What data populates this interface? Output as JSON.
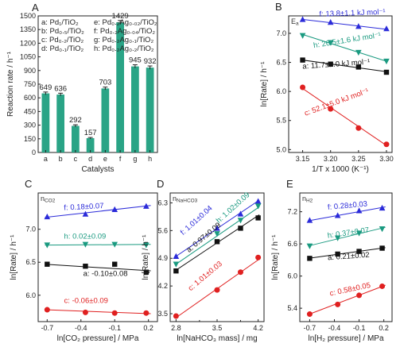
{
  "chart_data": [
    {
      "id": "A",
      "type": "bar",
      "panel_label": "A",
      "xlabel": "Catalysts",
      "ylabel": "Reaction rate / h⁻¹",
      "ylim": [
        0,
        1500
      ],
      "yticks": [
        0,
        150,
        300,
        450,
        600,
        750,
        900,
        1050,
        1200,
        1350,
        1500
      ],
      "categories": [
        "a",
        "b",
        "c",
        "d",
        "e",
        "f",
        "g",
        "h"
      ],
      "values": [
        649,
        636,
        292,
        157,
        703,
        1429,
        945,
        932
      ],
      "errors": [
        15,
        15,
        12,
        8,
        15,
        20,
        18,
        18
      ],
      "value_labels": [
        "649",
        "636",
        "292",
        "157",
        "703",
        "1429",
        "945",
        "932"
      ],
      "legend": [
        "a: Pd₁/TiO₂",
        "b: Pd₀.₅/TiO₂",
        "c: Pd₀.₂/TiO₂",
        "d: Pd₀.₁/TiO₂",
        "e: Pd₀.₂Ag₀.₀₂/TiO₂",
        "f: Pd₀.₂Ag₀.₀₄/TiO₂",
        "g: Pd₀.₂Ag₀.₁/TiO₂",
        "h: Pd₀.₂Ag₀.₂/TiO₂"
      ],
      "bar_color": "#2aa486",
      "legend_placement": "top-left"
    },
    {
      "id": "B",
      "type": "scatter",
      "panel_label": "B",
      "corner_label": "Ea",
      "xlabel": "1/T x 1000 (K⁻¹)",
      "ylabel": "ln[Rate] / h⁻¹",
      "xlim": [
        3.125,
        3.31
      ],
      "ylim": [
        4.95,
        7.3
      ],
      "xticks": [
        3.15,
        3.2,
        3.25,
        3.3
      ],
      "yticks": [
        5.0,
        5.5,
        6.0,
        6.5,
        7.0
      ],
      "series": [
        {
          "name": "f: 13.8±1.1 kJ mol⁻¹",
          "color": "#2b2bd9",
          "marker": "triangle-up",
          "x": [
            3.15,
            3.2,
            3.25,
            3.3
          ],
          "y": [
            7.24,
            7.19,
            7.12,
            7.08
          ],
          "fit": [
            [
              3.15,
              7.24
            ],
            [
              3.3,
              7.07
            ]
          ]
        },
        {
          "name": "h: 26.5±1.6 kJ mol⁻¹",
          "color": "#1a9a80",
          "marker": "triangle-down",
          "x": [
            3.15,
            3.2,
            3.25,
            3.3
          ],
          "y": [
            6.96,
            6.84,
            6.67,
            6.52
          ],
          "fit": [
            [
              3.15,
              6.98
            ],
            [
              3.3,
              6.52
            ]
          ]
        },
        {
          "name": "a: 11.7±1.0 kJ mol⁻¹",
          "color": "#111111",
          "marker": "square",
          "x": [
            3.15,
            3.2,
            3.25,
            3.3
          ],
          "y": [
            6.54,
            6.47,
            6.42,
            6.33
          ],
          "fit": [
            [
              3.15,
              6.54
            ],
            [
              3.3,
              6.34
            ]
          ]
        },
        {
          "name": "c: 52.1±5.0 kJ mol⁻¹",
          "color": "#e02020",
          "marker": "circle",
          "x": [
            3.15,
            3.2,
            3.25,
            3.3
          ],
          "y": [
            6.07,
            5.7,
            5.37,
            5.09
          ],
          "fit": [
            [
              3.15,
              6.05
            ],
            [
              3.3,
              5.07
            ]
          ]
        }
      ]
    },
    {
      "id": "C",
      "type": "scatter",
      "panel_label": "C",
      "corner_label": "nCO2",
      "xlabel": "ln[CO₂ pressure] / MPa",
      "ylabel": "ln[Rate] / h⁻¹",
      "xlim": [
        -0.78,
        0.28
      ],
      "ylim": [
        5.6,
        7.55
      ],
      "xticks": [
        -0.7,
        -0.4,
        -0.1,
        0.2
      ],
      "yticks": [
        6.0,
        6.5,
        7.0
      ],
      "series": [
        {
          "name": "f: 0.18±0.07",
          "color": "#2b2bd9",
          "marker": "triangle-up",
          "x": [
            -0.7,
            -0.36,
            -0.1,
            0.18
          ],
          "y": [
            7.19,
            7.23,
            7.3,
            7.35
          ],
          "fit": [
            [
              -0.72,
              7.18
            ],
            [
              0.22,
              7.36
            ]
          ]
        },
        {
          "name": "h: 0.02±0.09",
          "color": "#1a9a80",
          "marker": "triangle-down",
          "x": [
            -0.7,
            -0.36,
            -0.1,
            0.18
          ],
          "y": [
            6.76,
            6.77,
            6.77,
            6.76
          ],
          "fit": [
            [
              -0.72,
              6.76
            ],
            [
              0.22,
              6.77
            ]
          ]
        },
        {
          "name": "a: -0.10±0.08",
          "color": "#111111",
          "marker": "square",
          "x": [
            -0.7,
            -0.36,
            -0.1,
            0.18
          ],
          "y": [
            6.47,
            6.44,
            6.47,
            6.35
          ],
          "fit": [
            [
              -0.72,
              6.47
            ],
            [
              0.22,
              6.37
            ]
          ]
        },
        {
          "name": "c: -0.06±0.09",
          "color": "#e02020",
          "marker": "circle",
          "x": [
            -0.7,
            -0.36,
            -0.1,
            0.18
          ],
          "y": [
            5.78,
            5.74,
            5.73,
            5.73
          ],
          "fit": [
            [
              -0.72,
              5.78
            ],
            [
              0.22,
              5.72
            ]
          ]
        }
      ]
    },
    {
      "id": "D",
      "type": "scatter",
      "panel_label": "D",
      "corner_label": "nNaHCO3",
      "xlabel": "ln[NaHCO₃ mass] / mg",
      "ylabel": "ln[Rate] / h⁻¹",
      "xlim": [
        2.7,
        4.3
      ],
      "ylim": [
        3.3,
        6.55
      ],
      "xticks": [
        2.8,
        3.5,
        4.2
      ],
      "xticks_minor": [
        3.2,
        3.9
      ],
      "yticks": [
        3.5,
        4.2,
        4.9,
        5.6,
        6.3
      ],
      "series": [
        {
          "name": "f: 1.01±0.04",
          "color": "#2b2bd9",
          "marker": "triangle-up",
          "x": [
            2.8,
            3.5,
            3.9,
            4.2
          ],
          "y": [
            4.95,
            5.66,
            6.02,
            6.34
          ],
          "fit": [
            [
              2.8,
              4.95
            ],
            [
              4.22,
              6.37
            ]
          ]
        },
        {
          "name": "h: 1.02±0.09",
          "color": "#1a9a80",
          "marker": "triangle-down",
          "x": [
            2.8,
            3.5,
            3.9,
            4.2
          ],
          "y": [
            4.75,
            5.52,
            5.86,
            6.22
          ],
          "fit": [
            [
              2.8,
              4.75
            ],
            [
              4.22,
              6.2
            ]
          ]
        },
        {
          "name": "a: 0.97±0.09",
          "color": "#111111",
          "marker": "square",
          "x": [
            2.8,
            3.5,
            3.9,
            4.2
          ],
          "y": [
            4.58,
            5.32,
            5.66,
            5.92
          ],
          "fit": [
            [
              2.8,
              4.6
            ],
            [
              4.22,
              6.0
            ]
          ]
        },
        {
          "name": "c: 1.01±0.03",
          "color": "#e02020",
          "marker": "circle",
          "x": [
            2.8,
            3.5,
            3.9,
            4.2
          ],
          "y": [
            3.44,
            4.1,
            4.55,
            4.92
          ],
          "fit": [
            [
              2.8,
              3.4
            ],
            [
              4.22,
              4.88
            ]
          ]
        }
      ]
    },
    {
      "id": "E",
      "type": "scatter",
      "panel_label": "E",
      "corner_label": "nH2",
      "xlabel": "ln[H₂ pressure] / MPa",
      "ylabel": "ln[Rate] / h⁻¹",
      "xlim": [
        -0.82,
        0.3
      ],
      "ylim": [
        5.15,
        7.55
      ],
      "xticks": [
        -0.7,
        -0.4,
        -0.1,
        0.2
      ],
      "yticks": [
        5.4,
        6.0,
        6.6,
        7.2
      ],
      "series": [
        {
          "name": "f: 0.28±0.03",
          "color": "#2b2bd9",
          "marker": "triangle-up",
          "x": [
            -0.7,
            -0.36,
            -0.1,
            0.18
          ],
          "y": [
            7.04,
            7.13,
            7.22,
            7.27
          ],
          "fit": [
            [
              -0.72,
              7.03
            ],
            [
              0.22,
              7.29
            ]
          ]
        },
        {
          "name": "h: 0.37±0.07",
          "color": "#1a9a80",
          "marker": "triangle-down",
          "x": [
            -0.7,
            -0.36,
            -0.1,
            0.18
          ],
          "y": [
            6.56,
            6.71,
            6.8,
            6.88
          ],
          "fit": [
            [
              -0.72,
              6.56
            ],
            [
              0.22,
              6.91
            ]
          ]
        },
        {
          "name": "a: 0.21±0.02",
          "color": "#111111",
          "marker": "square",
          "x": [
            -0.7,
            -0.36,
            -0.1,
            0.18
          ],
          "y": [
            6.33,
            6.41,
            6.46,
            6.52
          ],
          "fit": [
            [
              -0.72,
              6.33
            ],
            [
              0.22,
              6.53
            ]
          ]
        },
        {
          "name": "c: 0.58±0.05",
          "color": "#e02020",
          "marker": "circle",
          "x": [
            -0.7,
            -0.36,
            -0.1,
            0.18
          ],
          "y": [
            5.29,
            5.47,
            5.64,
            5.81
          ],
          "fit": [
            [
              -0.72,
              5.28
            ],
            [
              0.22,
              5.83
            ]
          ]
        }
      ]
    }
  ]
}
